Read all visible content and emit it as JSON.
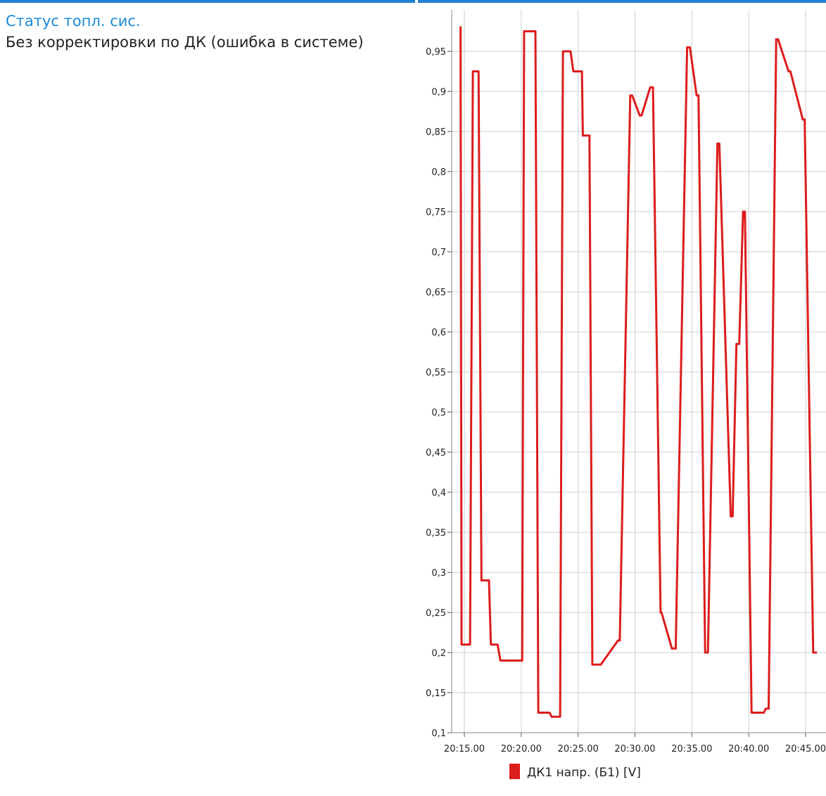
{
  "panel": {
    "label": "Статус топл. сис.",
    "value": "Без корректировки по ДК (ошибка в системе)"
  },
  "colors": {
    "accent": "#1f7fd0",
    "series": "#dd1c1c",
    "grid": "#cfcfcf"
  },
  "chart_data": {
    "type": "line",
    "title": "",
    "xlabel": "",
    "ylabel": "",
    "ylim": [
      0.1,
      1.0
    ],
    "xlim": [
      "20:14.35",
      "20:46.00"
    ],
    "grid": true,
    "legend": "bottom",
    "yticks": [
      "0,1",
      "0,15",
      "0,2",
      "0,25",
      "0,3",
      "0,35",
      "0,4",
      "0,45",
      "0,5",
      "0,55",
      "0,6",
      "0,65",
      "0,7",
      "0,75",
      "0,8",
      "0,85",
      "0,9",
      "0,95"
    ],
    "yticks_values": [
      0.1,
      0.15,
      0.2,
      0.25,
      0.3,
      0.35,
      0.4,
      0.45,
      0.5,
      0.55,
      0.6,
      0.65,
      0.7,
      0.75,
      0.8,
      0.85,
      0.9,
      0.95
    ],
    "xticks": [
      "20:15.00",
      "20:20.00",
      "20:25.00",
      "20:30.00",
      "20:35.00",
      "20:40.00",
      "20:45.00"
    ],
    "xticks_values": [
      "20:15.00",
      "20:20.00",
      "20:25.00",
      "20:30.00",
      "20:35.00",
      "20:40.00",
      "20:45.00"
    ],
    "series": [
      {
        "name": "ДК1 напр. (Б1) [V]",
        "color": "#dd1c1c",
        "x": [
          "20:14.35",
          "20:14.40",
          "20:14.45",
          "20:15.30",
          "20:15.45",
          "20:16.15",
          "20:16.30",
          "20:17.10",
          "20:17.20",
          "20:17.55",
          "20:18.10",
          "20:20.05",
          "20:20.15",
          "20:21.15",
          "20:21.30",
          "20:22.30",
          "20:22.40",
          "20:23.25",
          "20:23.40",
          "20:24.20",
          "20:24.35",
          "20:25.20",
          "20:25.25",
          "20:26.00",
          "20:26.15",
          "20:26.50",
          "20:27.00",
          "20:28.30",
          "20:28.40",
          "20:29.35",
          "20:29.45",
          "20:30.25",
          "20:30.35",
          "20:31.20",
          "20:31.35",
          "20:32.15",
          "20:32.20",
          "20:33.15",
          "20:33.35",
          "20:34.35",
          "20:34.50",
          "20:35.25",
          "20:35.35",
          "20:36.10",
          "20:36.25",
          "20:37.15",
          "20:37.25",
          "20:38.25",
          "20:38.35",
          "20:38.55",
          "20:39.10",
          "20:39.30",
          "20:39.40",
          "20:40.15",
          "20:41.20",
          "20:41.30",
          "20:41.45",
          "20:42.25",
          "20:42.35",
          "20:43.30",
          "20:43.40",
          "20:44.45",
          "20:44.55",
          "20:45.40",
          "20:45.50",
          "20:46.00"
        ],
        "values": [
          0.98,
          0.98,
          0.21,
          0.21,
          0.925,
          0.925,
          0.29,
          0.29,
          0.21,
          0.21,
          0.19,
          0.19,
          0.975,
          0.975,
          0.125,
          0.125,
          0.12,
          0.12,
          0.95,
          0.95,
          0.925,
          0.925,
          0.845,
          0.845,
          0.185,
          0.185,
          0.185,
          0.215,
          0.215,
          0.895,
          0.895,
          0.87,
          0.87,
          0.905,
          0.905,
          0.25,
          0.25,
          0.205,
          0.205,
          0.955,
          0.955,
          0.895,
          0.895,
          0.2,
          0.2,
          0.835,
          0.835,
          0.37,
          0.37,
          0.585,
          0.585,
          0.75,
          0.75,
          0.125,
          0.125,
          0.13,
          0.13,
          0.965,
          0.965,
          0.925,
          0.925,
          0.865,
          0.865,
          0.2,
          0.2,
          0.2
        ]
      }
    ]
  }
}
